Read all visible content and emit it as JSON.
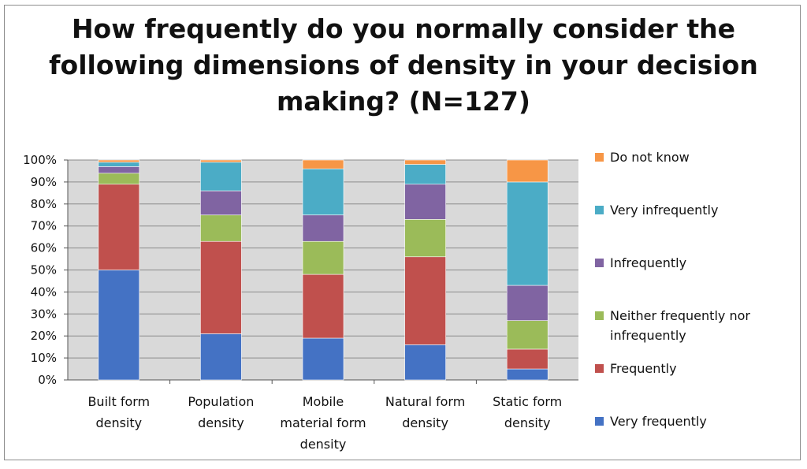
{
  "chart_data": {
    "type": "bar",
    "stacked": true,
    "percent": true,
    "title_lines": [
      "How frequently do you normally consider the",
      "following dimensions of density in your decision",
      "making? (N=127)"
    ],
    "categories": [
      [
        "Built form",
        "density"
      ],
      [
        "Population",
        "density"
      ],
      [
        "Mobile",
        "material form",
        "density"
      ],
      [
        "Natural form",
        "density"
      ],
      [
        "Static form",
        "density"
      ]
    ],
    "series": [
      {
        "name": "Very frequently",
        "color": "#4472C4",
        "legend_lines": [
          "Very frequently"
        ],
        "values": [
          50,
          21,
          19,
          16,
          5
        ]
      },
      {
        "name": "Frequently",
        "color": "#C0504D",
        "legend_lines": [
          "Frequently"
        ],
        "values": [
          39,
          42,
          29,
          40,
          9
        ]
      },
      {
        "name": "Neither frequently nor infrequently",
        "color": "#9BBB59",
        "legend_lines": [
          "Neither frequently nor",
          "infrequently"
        ],
        "values": [
          5,
          12,
          15,
          17,
          13
        ]
      },
      {
        "name": "Infrequently",
        "color": "#8064A2",
        "legend_lines": [
          "Infrequently"
        ],
        "values": [
          3,
          11,
          12,
          16,
          16
        ]
      },
      {
        "name": "Very infrequently",
        "color": "#4BACC6",
        "legend_lines": [
          "Very infrequently"
        ],
        "values": [
          2,
          13,
          21,
          9,
          47
        ]
      },
      {
        "name": "Do not know",
        "color": "#F79646",
        "legend_lines": [
          "Do not know"
        ],
        "values": [
          1,
          1,
          4,
          2,
          10
        ]
      }
    ],
    "y_ticks": [
      "0%",
      "10%",
      "20%",
      "30%",
      "40%",
      "50%",
      "60%",
      "70%",
      "80%",
      "90%",
      "100%"
    ],
    "ylim": [
      0,
      100
    ],
    "grid": true,
    "legend_position": "right"
  }
}
